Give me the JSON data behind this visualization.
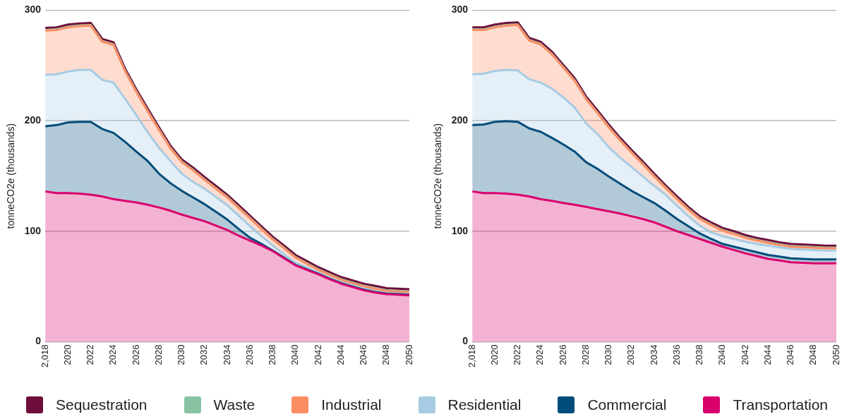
{
  "chart_data": [
    {
      "type": "area",
      "stacked": true,
      "ylabel": "tonneCO2e (thousands)",
      "x": [
        2018,
        2019,
        2020,
        2021,
        2022,
        2023,
        2024,
        2025,
        2026,
        2027,
        2028,
        2029,
        2030,
        2031,
        2032,
        2033,
        2034,
        2035,
        2036,
        2037,
        2038,
        2039,
        2040,
        2041,
        2042,
        2043,
        2044,
        2045,
        2046,
        2047,
        2048,
        2049,
        2050
      ],
      "xlim": [
        2018,
        2050
      ],
      "xticks": [
        {
          "value": 2018,
          "label": "2,018"
        },
        2020,
        2022,
        2024,
        2026,
        2028,
        2030,
        2032,
        2034,
        2036,
        2038,
        2040,
        2042,
        2044,
        2046,
        2048,
        2050
      ],
      "ylim": [
        0,
        300
      ],
      "yticks": [
        0,
        100,
        200,
        300
      ],
      "grid": "y",
      "legend": "bottom",
      "series": [
        {
          "name": "Transportation",
          "color": "#d9006c",
          "values": [
            136,
            134.5,
            134.5,
            134,
            133,
            131.5,
            129,
            127.5,
            126,
            124,
            121.5,
            118.5,
            115,
            112,
            109,
            105,
            101,
            96,
            91.5,
            87,
            82,
            75.5,
            69,
            65,
            61,
            56.5,
            52.5,
            49.5,
            46.5,
            44.5,
            43,
            42.5,
            42
          ]
        },
        {
          "name": "Commercial",
          "color": "#004c7b",
          "values": [
            59,
            61.5,
            64,
            65,
            66,
            61,
            60,
            53.5,
            46,
            39.5,
            30.5,
            25,
            21.5,
            18.5,
            15.5,
            12.5,
            9.5,
            6,
            2.5,
            1.5,
            0.5,
            0.5,
            0.5,
            0.5,
            0.5,
            0.5,
            0.5,
            0.5,
            0.5,
            0.5,
            0.5,
            0.5,
            0.5
          ]
        },
        {
          "name": "Residential",
          "color": "#a6cbe3",
          "values": [
            46.5,
            46,
            46,
            47,
            47,
            44.5,
            45.5,
            39,
            33,
            26,
            23.5,
            20,
            15.5,
            14,
            14,
            13.5,
            13,
            12,
            10.5,
            7,
            4.5,
            3,
            2,
            1.5,
            1,
            1,
            1,
            1,
            1,
            1,
            0.5,
            0.5,
            0.5
          ]
        },
        {
          "name": "Industrial",
          "color": "#fc8d62",
          "values": [
            40,
            40,
            40,
            39.5,
            40,
            34.5,
            34,
            25,
            21,
            19,
            16,
            11.5,
            10.5,
            10.5,
            8,
            7.5,
            7,
            7,
            7,
            6.5,
            5.5,
            5.5,
            4.5,
            3.5,
            2.5,
            2.5,
            2,
            2,
            2,
            2,
            2,
            2,
            2
          ]
        },
        {
          "name": "Waste",
          "color": "#88c4a4",
          "values": [
            0.5,
            0.5,
            0.5,
            0.5,
            0.5,
            0.5,
            0.5,
            0.5,
            0.5,
            0.5,
            0.5,
            0.5,
            0.5,
            0.5,
            0.5,
            0.5,
            0.5,
            0.5,
            0.5,
            0.5,
            0.5,
            0.5,
            0.5,
            0.5,
            0.5,
            0.5,
            0.5,
            0.5,
            0.5,
            0.5,
            0.5,
            0.5,
            0.5
          ]
        },
        {
          "name": "Sequestration",
          "color": "#6d0f3a",
          "values": [
            2,
            2,
            2,
            2,
            2,
            2,
            2,
            2,
            2,
            2,
            2,
            2,
            2,
            2,
            2,
            2,
            2,
            2,
            2,
            2,
            2,
            2,
            2,
            2,
            2,
            2,
            2,
            2,
            2,
            2,
            2,
            2,
            2
          ]
        }
      ]
    },
    {
      "type": "area",
      "stacked": true,
      "ylabel": "tonneCO2e (thousands)",
      "x": [
        2018,
        2019,
        2020,
        2021,
        2022,
        2023,
        2024,
        2025,
        2026,
        2027,
        2028,
        2029,
        2030,
        2031,
        2032,
        2033,
        2034,
        2035,
        2036,
        2037,
        2038,
        2039,
        2040,
        2041,
        2042,
        2043,
        2044,
        2045,
        2046,
        2047,
        2048,
        2049,
        2050
      ],
      "xlim": [
        2018,
        2050
      ],
      "xticks": [
        {
          "value": 2018,
          "label": "2,018"
        },
        2020,
        2022,
        2024,
        2026,
        2028,
        2030,
        2032,
        2034,
        2036,
        2038,
        2040,
        2042,
        2044,
        2046,
        2048,
        2050
      ],
      "ylim": [
        0,
        300
      ],
      "yticks": [
        0,
        100,
        200,
        300
      ],
      "grid": "y",
      "series": [
        {
          "color": "#d9006c",
          "values": [
            136,
            134.5,
            134.5,
            134,
            133,
            131.5,
            129,
            127.5,
            125.5,
            124,
            122,
            120,
            118,
            116,
            113.5,
            111,
            108,
            104,
            100,
            96.5,
            93,
            89.5,
            86,
            83,
            80,
            77.5,
            75,
            73.5,
            72,
            71.5,
            71,
            71,
            71
          ]
        },
        {
          "color": "#004c7b",
          "values": [
            60,
            62,
            64.5,
            65.5,
            66,
            61.5,
            61,
            57,
            53,
            48,
            40.5,
            36.5,
            31.5,
            27,
            23,
            20,
            17.5,
            14.5,
            11,
            8,
            5,
            3.5,
            2.5,
            3,
            3.5,
            3.5,
            3.5,
            3.5,
            3.5,
            3.5,
            3.5,
            3.5,
            3.5
          ]
        },
        {
          "color": "#a6cbe3",
          "values": [
            46,
            46,
            46,
            46.5,
            46.5,
            44.5,
            44.5,
            44.5,
            42.5,
            40,
            35,
            31.5,
            26.5,
            23.5,
            21.5,
            18.5,
            15.5,
            14.5,
            12,
            9,
            7,
            6,
            7,
            7,
            7,
            7.5,
            8.5,
            8.5,
            8.5,
            8.5,
            8.5,
            8,
            8
          ]
        },
        {
          "color": "#fc8d62",
          "values": [
            40,
            39.5,
            39.5,
            40,
            41,
            35,
            34.5,
            31,
            27,
            24,
            22,
            19,
            18,
            15.5,
            13,
            11,
            8.5,
            6,
            6,
            6,
            6,
            6.5,
            5,
            4.5,
            3.5,
            3,
            2.5,
            2,
            2,
            2,
            2,
            2,
            2
          ]
        },
        {
          "color": "#88c4a4",
          "values": [
            0.5,
            0.5,
            0.5,
            0.5,
            0.5,
            0.5,
            0.5,
            0.5,
            0.5,
            0.5,
            0.5,
            0.5,
            0.5,
            0.5,
            0.5,
            0.5,
            0.5,
            0.5,
            0.5,
            0.5,
            0.5,
            0.5,
            0.5,
            0.5,
            0.5,
            0.5,
            0.5,
            0.5,
            0.5,
            0.5,
            0.5,
            0.5,
            0.5
          ]
        },
        {
          "color": "#6d0f3a",
          "values": [
            2,
            2,
            2,
            2,
            2,
            2,
            2,
            2,
            2,
            2,
            2,
            2,
            2,
            2,
            2,
            2,
            2,
            2,
            2,
            2,
            2,
            2,
            2,
            2,
            2,
            2,
            2,
            2,
            2,
            2,
            2,
            2,
            2
          ]
        }
      ]
    }
  ]
}
